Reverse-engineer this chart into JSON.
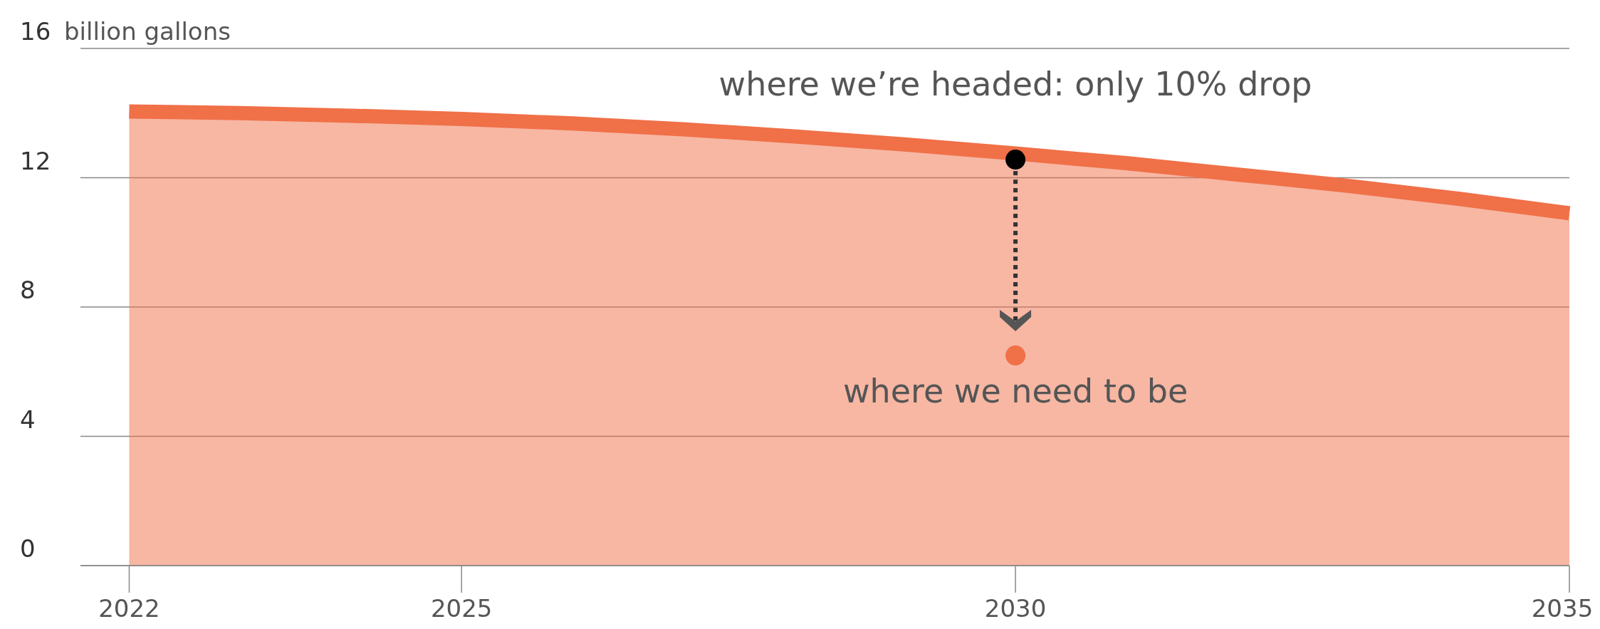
{
  "chart_data": {
    "type": "area",
    "ylabel": "billion gallons",
    "x": [
      2022,
      2023,
      2024,
      2025,
      2026,
      2027,
      2028,
      2029,
      2030,
      2031,
      2032,
      2033,
      2034,
      2035
    ],
    "series": [
      {
        "color": "#f07048",
        "values": [
          14.05,
          14.0,
          13.92,
          13.82,
          13.68,
          13.5,
          13.28,
          13.03,
          12.75,
          12.45,
          12.1,
          11.75,
          11.35,
          10.9
        ]
      },
      {
        "type": "scatter",
        "color": "#000000",
        "marker": "circle",
        "x": [
          2030
        ],
        "values": [
          12.56
        ]
      },
      {
        "type": "scatter",
        "color": "#f07048",
        "marker": "circle",
        "x": [
          2030
        ],
        "values": [
          6.5
        ]
      }
    ],
    "xlim": [
      2021.56,
      2035
    ],
    "xticks": [
      2022,
      2025,
      2030,
      2035
    ],
    "ylim": [
      0,
      16
    ],
    "yticks": [
      0,
      4,
      8,
      12,
      16
    ],
    "grid": "y",
    "annotations": [
      {
        "text": "where we’re headed: only 10% drop",
        "x": 2030,
        "y": 12.56
      },
      {
        "text": "where we need to be",
        "x": 2030,
        "y": 6.5
      }
    ]
  }
}
